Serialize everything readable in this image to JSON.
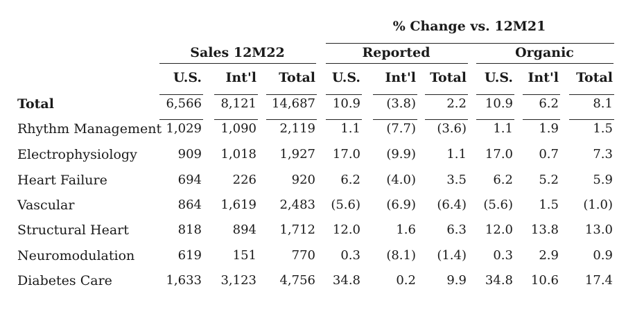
{
  "headers": {
    "pct_change": "% Change vs. 12M21",
    "sales_group": "Sales 12M22",
    "reported_group": "Reported",
    "organic_group": "Organic",
    "columns": [
      "U.S.",
      "Int'l",
      "Total",
      "U.S.",
      "Int'l",
      "Total",
      "U.S.",
      "Int'l",
      "Total"
    ]
  },
  "rows": [
    {
      "label": "Total",
      "values": [
        "6,566",
        "8,121",
        "14,687",
        "10.9",
        "(3.8)",
        "2.2",
        "10.9",
        "6.2",
        "8.1"
      ]
    },
    {
      "label": "Rhythm Management",
      "values": [
        "1,029",
        "1,090",
        "2,119",
        "1.1",
        "(7.7)",
        "(3.6)",
        "1.1",
        "1.9",
        "1.5"
      ]
    },
    {
      "label": "Electrophysiology",
      "values": [
        "909",
        "1,018",
        "1,927",
        "17.0",
        "(9.9)",
        "1.1",
        "17.0",
        "0.7",
        "7.3"
      ]
    },
    {
      "label": "Heart Failure",
      "values": [
        "694",
        "226",
        "920",
        "6.2",
        "(4.0)",
        "3.5",
        "6.2",
        "5.2",
        "5.9"
      ]
    },
    {
      "label": "Vascular",
      "values": [
        "864",
        "1,619",
        "2,483",
        "(5.6)",
        "(6.9)",
        "(6.4)",
        "(5.6)",
        "1.5",
        "(1.0)"
      ]
    },
    {
      "label": "Structural Heart",
      "values": [
        "818",
        "894",
        "1,712",
        "12.0",
        "1.6",
        "6.3",
        "12.0",
        "13.8",
        "13.0"
      ]
    },
    {
      "label": "Neuromodulation",
      "values": [
        "619",
        "151",
        "770",
        "0.3",
        "(8.1)",
        "(1.4)",
        "0.3",
        "2.9",
        "0.9"
      ]
    },
    {
      "label": "Diabetes Care",
      "values": [
        "1,633",
        "3,123",
        "4,756",
        "34.8",
        "0.2",
        "9.9",
        "34.8",
        "10.6",
        "17.4"
      ]
    }
  ]
}
